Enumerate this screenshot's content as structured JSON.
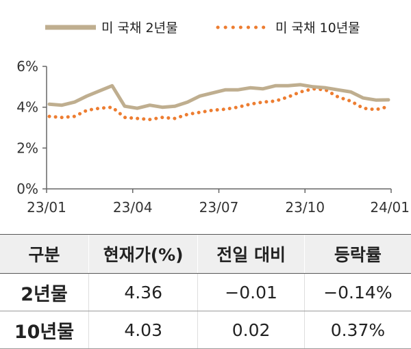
{
  "chart_data": {
    "type": "line",
    "title": "",
    "ylabel": "",
    "xlabel": "",
    "ylim": [
      0,
      6
    ],
    "y_ticks": [
      "0%",
      "2%",
      "4%",
      "6%"
    ],
    "x_ticks": [
      "23/01",
      "23/04",
      "23/07",
      "23/10",
      "24/01"
    ],
    "legend_position": "top",
    "colors": {
      "series_2y": "#bfae8f",
      "series_10y": "#ed7d31",
      "axis": "#666666"
    },
    "x": [
      "23/01",
      "23/01",
      "23/02",
      "23/02",
      "23/02",
      "23/03",
      "23/03",
      "23/03",
      "23/04",
      "23/04",
      "23/05",
      "23/05",
      "23/06",
      "23/06",
      "23/07",
      "23/07",
      "23/08",
      "23/08",
      "23/09",
      "23/09",
      "23/10",
      "23/10",
      "23/10",
      "23/11",
      "23/11",
      "23/12",
      "23/12",
      "24/01"
    ],
    "series": [
      {
        "name": "미 국채 2년물",
        "values": [
          4.15,
          4.1,
          4.25,
          4.55,
          4.8,
          5.05,
          4.05,
          3.95,
          4.1,
          4.0,
          4.05,
          4.25,
          4.55,
          4.7,
          4.85,
          4.85,
          4.95,
          4.9,
          5.05,
          5.05,
          5.1,
          5.0,
          4.95,
          4.85,
          4.75,
          4.45,
          4.35,
          4.36
        ]
      },
      {
        "name": "미 국채 10년물",
        "values": [
          3.55,
          3.5,
          3.55,
          3.85,
          3.95,
          4.0,
          3.5,
          3.45,
          3.4,
          3.5,
          3.45,
          3.65,
          3.75,
          3.85,
          3.9,
          4.0,
          4.15,
          4.25,
          4.3,
          4.5,
          4.75,
          4.9,
          4.85,
          4.5,
          4.3,
          3.95,
          3.88,
          4.03
        ]
      }
    ]
  },
  "table": {
    "headers": [
      "구분",
      "현재가(%)",
      "전일 대비",
      "등락률"
    ],
    "rows": [
      {
        "label": "2년물",
        "price": "4.36",
        "change": "−0.01",
        "pct": "−0.14%"
      },
      {
        "label": "10년물",
        "price": "4.03",
        "change": "0.02",
        "pct": "0.37%"
      }
    ]
  }
}
